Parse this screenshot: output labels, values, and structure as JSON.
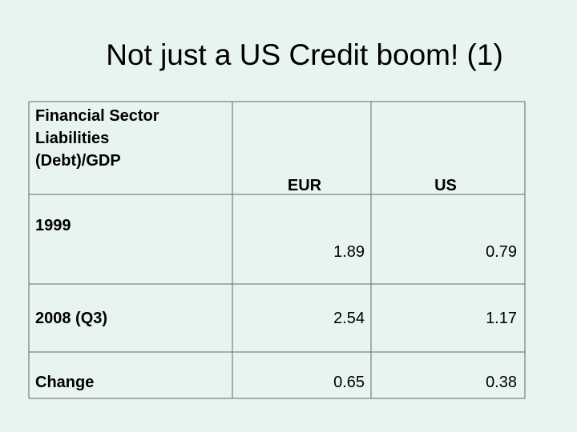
{
  "title": "Not just a US Credit boom! (1)",
  "table": {
    "header": [
      "Financial Sector Liabilities (Debt)/GDP",
      "EUR",
      "US"
    ],
    "rows": [
      [
        "1999",
        1.89,
        0.79
      ],
      [
        "2008 (Q3)",
        2.54,
        1.17
      ],
      [
        "Change",
        0.65,
        0.38
      ]
    ]
  }
}
